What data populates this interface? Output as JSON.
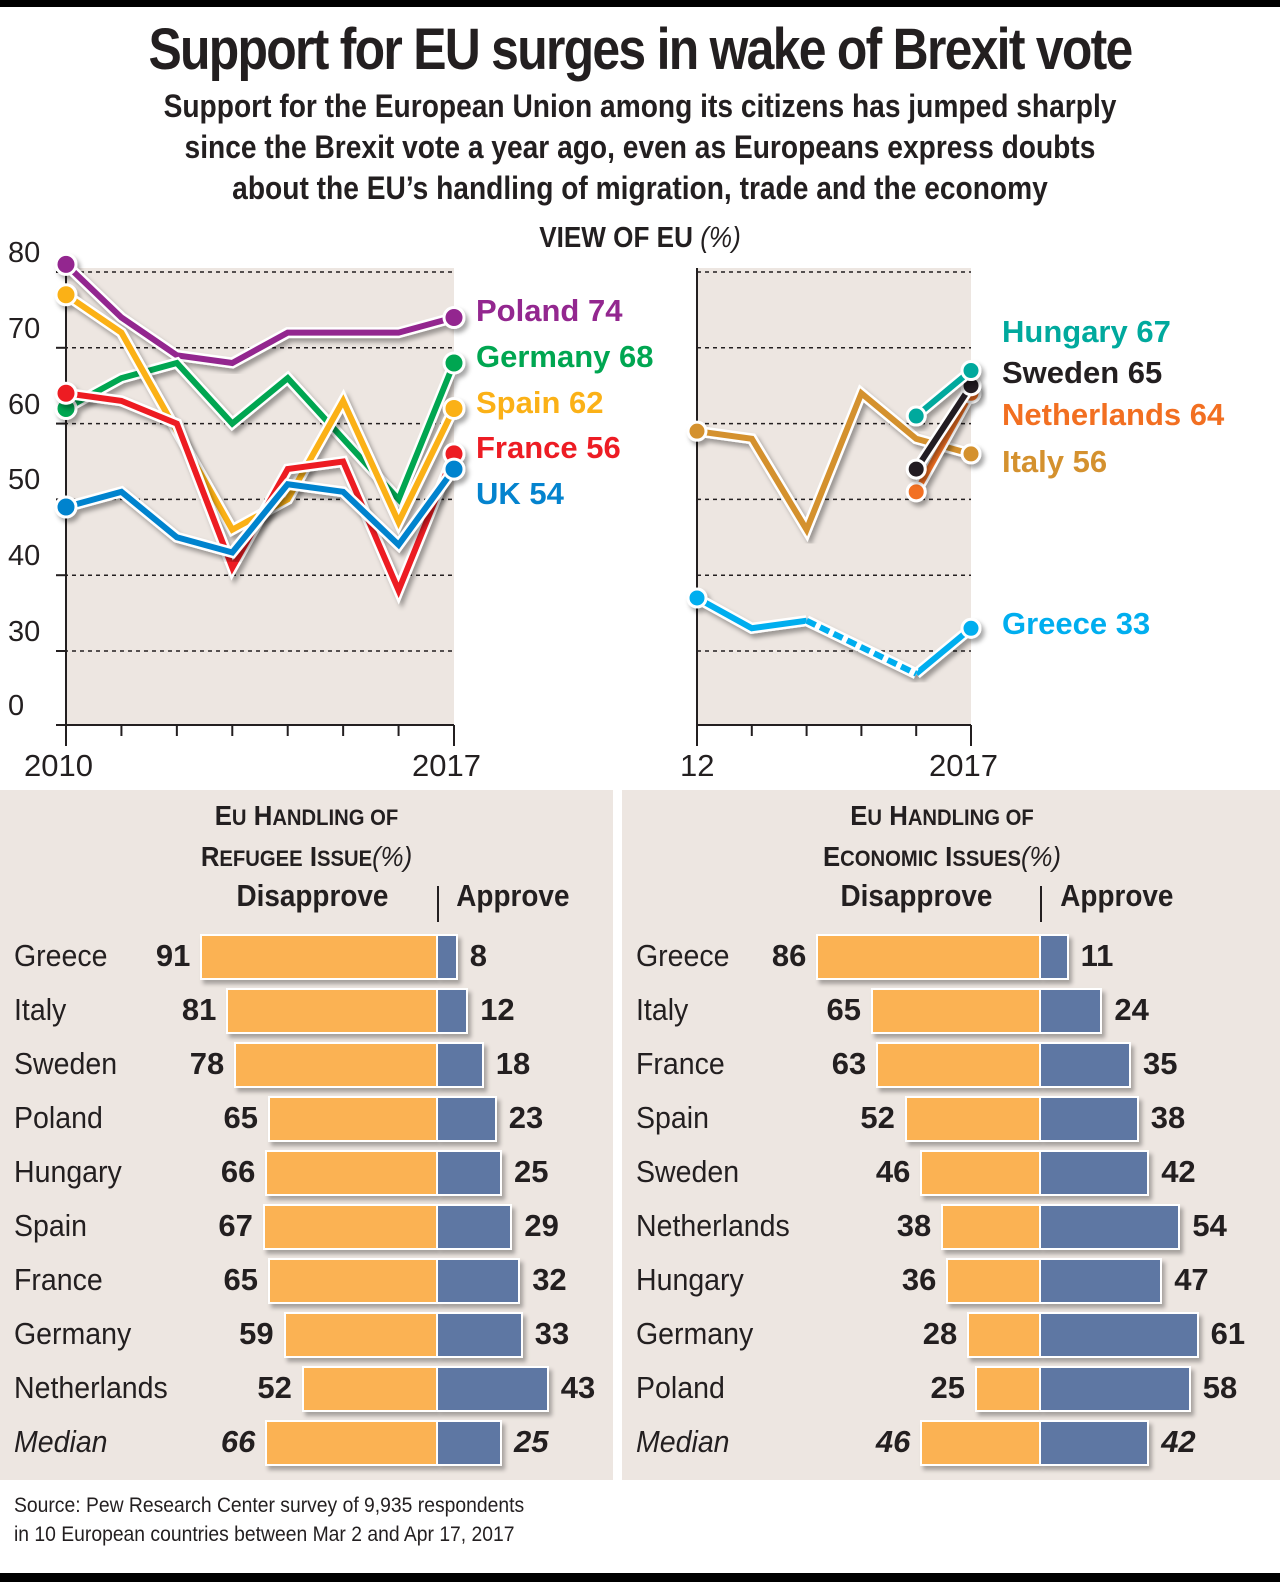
{
  "header": {
    "title": "Support for EU surges in wake of Brexit vote",
    "subtitle_lines": [
      "Support for the European Union among its citizens has jumped sharply",
      "since the Brexit vote a year ago, even as Europeans express doubts",
      "about the EU’s handling of migration, trade and the economy"
    ]
  },
  "chart_data": [
    {
      "type": "line",
      "title": "VIEW OF EU",
      "title_unit": "(%)",
      "panel": "left",
      "x": [
        2010,
        2011,
        2012,
        2013,
        2014,
        2015,
        2016,
        2017
      ],
      "x_tick_labels": [
        "2010",
        "",
        "",
        "",
        "",
        "",
        "",
        "2017"
      ],
      "y_ticks": [
        0,
        30,
        40,
        50,
        60,
        70,
        80
      ],
      "y_tick_labels": [
        "0",
        "30",
        "40",
        "50",
        "60",
        "70",
        "80"
      ],
      "ylim": [
        0,
        80
      ],
      "axis_break": "between 0 and 30",
      "grid": "dotted horizontal",
      "series": [
        {
          "name": "Poland",
          "label": "Poland 74",
          "color": "#93278f",
          "values": [
            81,
            74,
            69,
            68,
            72,
            72,
            72,
            74
          ]
        },
        {
          "name": "Germany",
          "label": "Germany 68",
          "color": "#00a651",
          "values": [
            62,
            66,
            68,
            60,
            66,
            58,
            50,
            68
          ]
        },
        {
          "name": "Spain",
          "label": "Spain 62",
          "color": "#fbb117",
          "values": [
            77,
            72,
            59,
            46,
            50,
            63,
            47,
            62
          ]
        },
        {
          "name": "France",
          "label": "France 56",
          "color": "#ed1c24",
          "values": [
            64,
            63,
            60,
            41,
            54,
            55,
            38,
            56
          ]
        },
        {
          "name": "UK",
          "label": "UK 54",
          "color": "#0483ce",
          "values": [
            49,
            51,
            45,
            43,
            52,
            51,
            44,
            54
          ]
        }
      ]
    },
    {
      "type": "line",
      "panel": "right",
      "x": [
        2012,
        2013,
        2014,
        2015,
        2016,
        2017
      ],
      "x_tick_labels": [
        "12",
        "",
        "",
        "",
        "",
        "2017"
      ],
      "ylim": [
        0,
        80
      ],
      "grid": "dotted horizontal",
      "series": [
        {
          "name": "Hungary",
          "label": "Hungary 67",
          "color": "#00a99d",
          "values": [
            null,
            null,
            null,
            null,
            61,
            67
          ]
        },
        {
          "name": "Sweden",
          "label": "Sweden 65",
          "color": "#231f20",
          "values": [
            null,
            null,
            null,
            null,
            54,
            65
          ]
        },
        {
          "name": "Netherlands",
          "label": "Netherlands 64",
          "color": "#f26f21",
          "values": [
            null,
            null,
            null,
            null,
            51,
            64
          ]
        },
        {
          "name": "Italy",
          "label": "Italy 56",
          "color": "#d4912e",
          "values": [
            59,
            58,
            46,
            64,
            58,
            56
          ]
        },
        {
          "name": "Greece",
          "label": "Greece 33",
          "color": "#00aeef",
          "values": [
            37,
            33,
            34,
            null,
            27,
            33
          ],
          "dashed_segment": "2014-2016"
        }
      ]
    },
    {
      "type": "bar",
      "orientation": "horizontal-diverging",
      "title": "EU HANDLING OF REFUGEE ISSUE",
      "title_lines": [
        "EU Handling of",
        "Refugee Issue"
      ],
      "title_unit": "(%)",
      "col_disapprove": "Disapprove",
      "col_approve": "Approve",
      "categories": [
        "Greece",
        "Italy",
        "Sweden",
        "Poland",
        "Hungary",
        "Spain",
        "France",
        "Germany",
        "Netherlands",
        "Median"
      ],
      "series": [
        {
          "name": "Disapprove",
          "color": "#fbb253",
          "values": [
            91,
            81,
            78,
            65,
            66,
            67,
            65,
            59,
            52,
            66
          ]
        },
        {
          "name": "Approve",
          "color": "#5e77a3",
          "values": [
            8,
            12,
            18,
            23,
            25,
            29,
            32,
            33,
            43,
            25
          ]
        }
      ]
    },
    {
      "type": "bar",
      "orientation": "horizontal-diverging",
      "title": "EU HANDLING OF ECONOMIC ISSUES",
      "title_lines": [
        "EU Handling of",
        "Economic Issues"
      ],
      "title_unit": "(%)",
      "col_disapprove": "Disapprove",
      "col_approve": "Approve",
      "categories": [
        "Greece",
        "Italy",
        "France",
        "Spain",
        "Sweden",
        "Netherlands",
        "Hungary",
        "Germany",
        "Poland",
        "Median"
      ],
      "series": [
        {
          "name": "Disapprove",
          "color": "#fbb253",
          "values": [
            86,
            65,
            63,
            52,
            46,
            38,
            36,
            28,
            25,
            46
          ]
        },
        {
          "name": "Approve",
          "color": "#5e77a3",
          "values": [
            11,
            24,
            35,
            38,
            42,
            54,
            47,
            61,
            58,
            42
          ]
        }
      ]
    }
  ],
  "footer": {
    "source_lines": [
      "Source: Pew Research Center survey of 9,935 respondents",
      "in 10 European countries between Mar 2 and Apr 17, 2017"
    ]
  },
  "colors": {
    "panel_bg": "#ede6e1",
    "disapprove": "#fbb253",
    "approve": "#5e77a3",
    "text": "#231f20"
  }
}
